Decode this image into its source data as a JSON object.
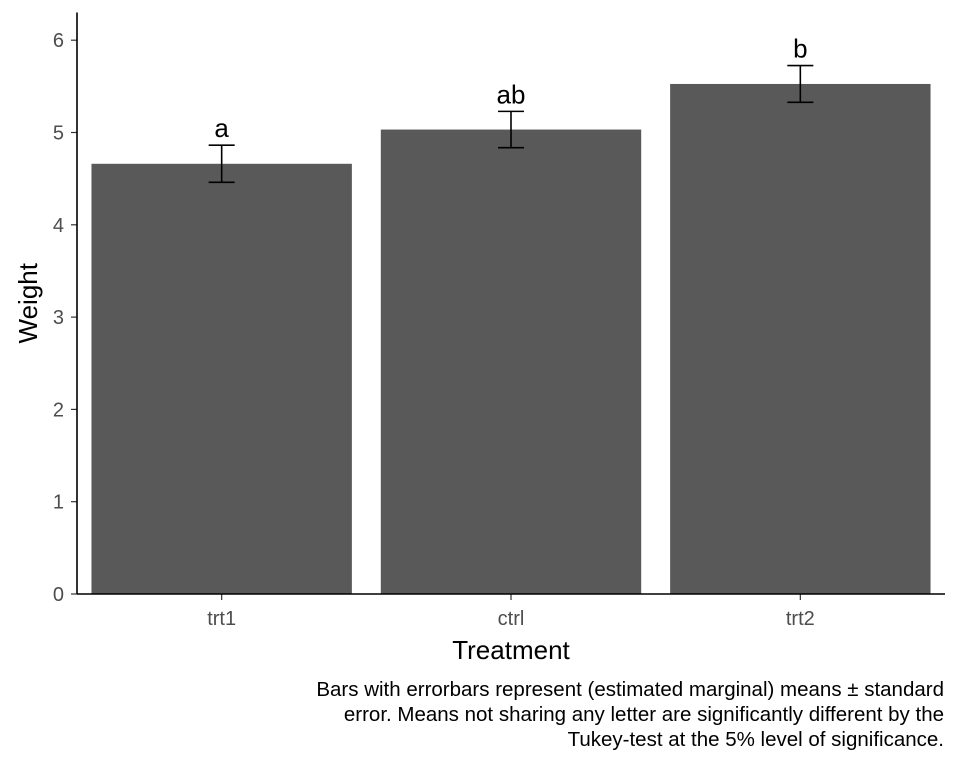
{
  "chart_data": {
    "type": "bar",
    "categories": [
      "trt1",
      "ctrl",
      "trt2"
    ],
    "values": [
      4.661,
      5.032,
      5.526
    ],
    "errors": [
      0.201,
      0.197,
      0.199
    ],
    "letters": [
      "a",
      "ab",
      "b"
    ],
    "xlabel": "Treatment",
    "ylabel": "Weight",
    "ylim": [
      0,
      6.3
    ],
    "yticks": [
      0,
      1,
      2,
      3,
      4,
      5,
      6
    ],
    "grid": false,
    "bar_color": "#595959"
  },
  "caption": {
    "lines": [
      "Bars with errorbars represent (estimated marginal) means ± standard",
      "error. Means not sharing any letter are significantly different by the",
      "Tukey-test at the 5% level of significance."
    ]
  }
}
